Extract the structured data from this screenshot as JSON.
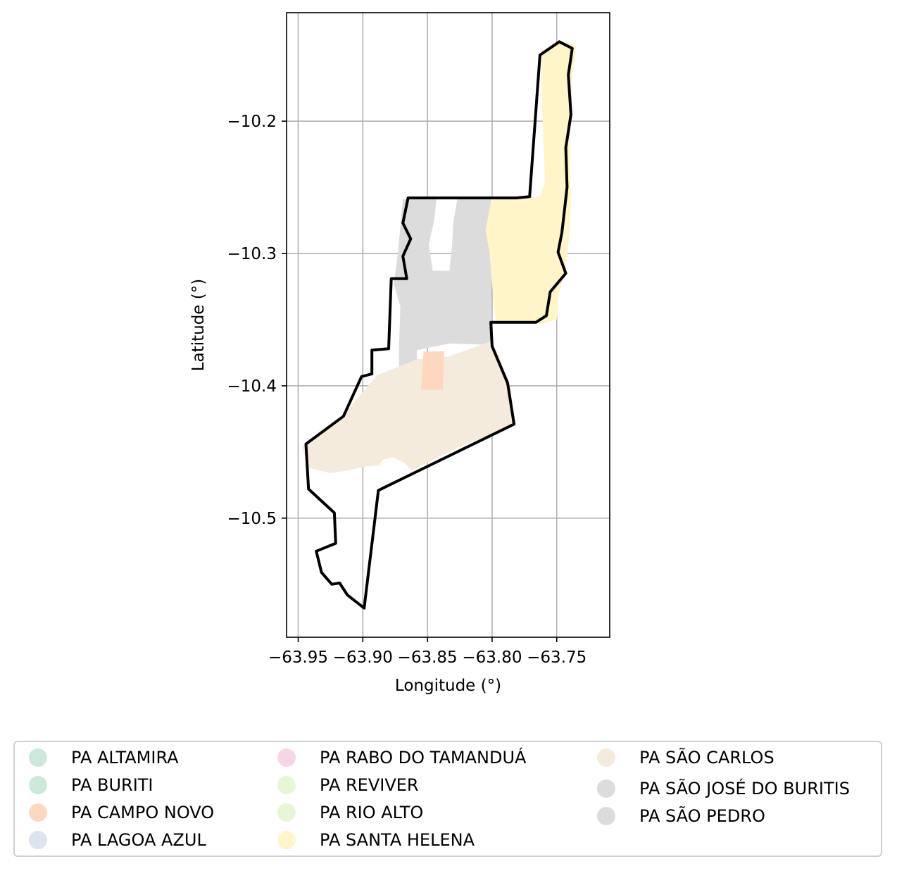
{
  "chart_data": {
    "type": "map",
    "xlabel": "Longitude (°)",
    "ylabel": "Latitude (°)",
    "xlim": [
      -63.959,
      -63.709
    ],
    "ylim": [
      -10.59,
      -10.118
    ],
    "x_ticks": [
      -63.95,
      -63.9,
      -63.85,
      -63.8,
      -63.75
    ],
    "x_tick_labels": [
      "−63.95",
      "−63.90",
      "−63.85",
      "−63.80",
      "−63.75"
    ],
    "y_ticks": [
      -10.2,
      -10.3,
      -10.4,
      -10.5
    ],
    "y_tick_labels": [
      "−10.2",
      "−10.3",
      "−10.4",
      "−10.5"
    ],
    "grid": true,
    "legend_placement": "bottom",
    "regions": [
      {
        "name": "PA SÃO PEDRO",
        "color": "#dcdcdc",
        "polygon": [
          [
            -63.869,
            -10.259
          ],
          [
            -63.843,
            -10.259
          ],
          [
            -63.845,
            -10.276
          ],
          [
            -63.849,
            -10.293
          ],
          [
            -63.846,
            -10.313
          ],
          [
            -63.833,
            -10.313
          ],
          [
            -63.831,
            -10.294
          ],
          [
            -63.83,
            -10.277
          ],
          [
            -63.827,
            -10.259
          ],
          [
            -63.801,
            -10.259
          ],
          [
            -63.8,
            -10.29
          ],
          [
            -63.801,
            -10.369
          ],
          [
            -63.833,
            -10.368
          ],
          [
            -63.858,
            -10.373
          ],
          [
            -63.859,
            -10.401
          ],
          [
            -63.872,
            -10.4
          ],
          [
            -63.872,
            -10.372
          ],
          [
            -63.871,
            -10.34
          ],
          [
            -63.876,
            -10.323
          ],
          [
            -63.873,
            -10.301
          ],
          [
            -63.869,
            -10.259
          ]
        ]
      },
      {
        "name": "PA SANTA HELENA",
        "color": "#fff5c8",
        "polygon": [
          [
            -63.8,
            -10.258
          ],
          [
            -63.763,
            -10.257
          ],
          [
            -63.759,
            -10.246
          ],
          [
            -63.762,
            -10.174
          ],
          [
            -63.761,
            -10.146
          ],
          [
            -63.743,
            -10.14
          ],
          [
            -63.735,
            -10.143
          ],
          [
            -63.738,
            -10.167
          ],
          [
            -63.739,
            -10.199
          ],
          [
            -63.74,
            -10.231
          ],
          [
            -63.739,
            -10.256
          ],
          [
            -63.74,
            -10.285
          ],
          [
            -63.743,
            -10.311
          ],
          [
            -63.748,
            -10.329
          ],
          [
            -63.75,
            -10.35
          ],
          [
            -63.762,
            -10.353
          ],
          [
            -63.797,
            -10.352
          ],
          [
            -63.799,
            -10.336
          ],
          [
            -63.802,
            -10.299
          ],
          [
            -63.805,
            -10.283
          ],
          [
            -63.802,
            -10.266
          ],
          [
            -63.8,
            -10.258
          ]
        ]
      },
      {
        "name": "PA SÃO CARLOS",
        "color": "#f5ebdd",
        "polygon": [
          [
            -63.889,
            -10.392
          ],
          [
            -63.858,
            -10.38
          ],
          [
            -63.834,
            -10.378
          ],
          [
            -63.8,
            -10.366
          ],
          [
            -63.787,
            -10.396
          ],
          [
            -63.782,
            -10.429
          ],
          [
            -63.829,
            -10.448
          ],
          [
            -63.862,
            -10.464
          ],
          [
            -63.868,
            -10.458
          ],
          [
            -63.877,
            -10.454
          ],
          [
            -63.885,
            -10.456
          ],
          [
            -63.887,
            -10.46
          ],
          [
            -63.898,
            -10.461
          ],
          [
            -63.912,
            -10.464
          ],
          [
            -63.925,
            -10.466
          ],
          [
            -63.942,
            -10.462
          ],
          [
            -63.947,
            -10.446
          ],
          [
            -63.932,
            -10.436
          ],
          [
            -63.915,
            -10.422
          ],
          [
            -63.889,
            -10.392
          ]
        ]
      },
      {
        "name": "PA CAMPO NOVO",
        "color": "#fdd8bf",
        "polygon": [
          [
            -63.853,
            -10.374
          ],
          [
            -63.837,
            -10.374
          ],
          [
            -63.838,
            -10.403
          ],
          [
            -63.855,
            -10.403
          ],
          [
            -63.853,
            -10.374
          ]
        ]
      }
    ],
    "boundary": [
      [
        -63.865,
        -10.258
      ],
      [
        -63.781,
        -10.258
      ],
      [
        -63.771,
        -10.257
      ],
      [
        -63.763,
        -10.15
      ],
      [
        -63.748,
        -10.14
      ],
      [
        -63.738,
        -10.145
      ],
      [
        -63.741,
        -10.165
      ],
      [
        -63.739,
        -10.195
      ],
      [
        -63.743,
        -10.22
      ],
      [
        -63.742,
        -10.25
      ],
      [
        -63.746,
        -10.284
      ],
      [
        -63.749,
        -10.299
      ],
      [
        -63.743,
        -10.315
      ],
      [
        -63.755,
        -10.329
      ],
      [
        -63.758,
        -10.347
      ],
      [
        -63.766,
        -10.352
      ],
      [
        -63.801,
        -10.352
      ],
      [
        -63.8,
        -10.37
      ],
      [
        -63.788,
        -10.398
      ],
      [
        -63.783,
        -10.429
      ],
      [
        -63.888,
        -10.479
      ],
      [
        -63.899,
        -10.568
      ],
      [
        -63.912,
        -10.558
      ],
      [
        -63.918,
        -10.549
      ],
      [
        -63.924,
        -10.55
      ],
      [
        -63.932,
        -10.541
      ],
      [
        -63.936,
        -10.525
      ],
      [
        -63.921,
        -10.519
      ],
      [
        -63.922,
        -10.496
      ],
      [
        -63.942,
        -10.478
      ],
      [
        -63.944,
        -10.444
      ],
      [
        -63.915,
        -10.423
      ],
      [
        -63.901,
        -10.393
      ],
      [
        -63.893,
        -10.391
      ],
      [
        -63.893,
        -10.373
      ],
      [
        -63.88,
        -10.372
      ],
      [
        -63.878,
        -10.319
      ],
      [
        -63.866,
        -10.319
      ],
      [
        -63.869,
        -10.302
      ],
      [
        -63.863,
        -10.289
      ],
      [
        -63.869,
        -10.277
      ],
      [
        -63.865,
        -10.258
      ]
    ]
  },
  "legend": {
    "items": [
      {
        "label": "PA ALTAMIRA",
        "color": "#cbe9da"
      },
      {
        "label": "PA BURITI",
        "color": "#cbe9da"
      },
      {
        "label": "PA CAMPO NOVO",
        "color": "#fdd8bf"
      },
      {
        "label": "PA LAGOA AZUL",
        "color": "#dde3ef"
      },
      {
        "label": "PA RABO DO TAMANDUÁ",
        "color": "#f6d5e6"
      },
      {
        "label": "PA REVIVER",
        "color": "#e9f5d7"
      },
      {
        "label": "PA RIO ALTO",
        "color": "#e9f5d7"
      },
      {
        "label": "PA SANTA HELENA",
        "color": "#fff5c8"
      },
      {
        "label": "PA SÃO CARLOS",
        "color": "#f5ebdd"
      },
      {
        "label": "PA SÃO JOSÉ DO BURITIS",
        "color": "#dcdcdc"
      },
      {
        "label": "PA SÃO PEDRO",
        "color": "#dcdcdc"
      }
    ]
  }
}
